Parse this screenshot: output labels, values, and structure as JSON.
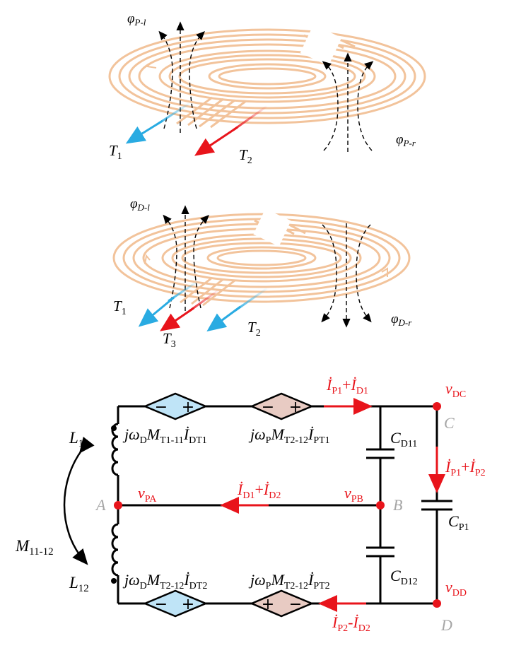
{
  "colors": {
    "coil": "#f2c39b",
    "wire": "#000000",
    "red": "#e8141b",
    "blue": "#29abe2",
    "node_gray": "#a6a6a6",
    "src_blue_fill": "#bfe4f7",
    "src_pink_fill": "#e8cbc3"
  },
  "panel_top": {
    "flux_left": {
      "sym": "φ",
      "sub": "P-l"
    },
    "flux_right": {
      "sym": "φ",
      "sub": "P-r"
    },
    "terminals": [
      {
        "name": "T",
        "sub": "1",
        "arrow": "blue"
      },
      {
        "name": "T",
        "sub": "2",
        "arrow": "red"
      }
    ]
  },
  "panel_mid": {
    "flux_left": {
      "sym": "φ",
      "sub": "D-l"
    },
    "flux_right": {
      "sym": "φ",
      "sub": "D-r"
    },
    "terminals": [
      {
        "name": "T",
        "sub": "1",
        "arrow": "blue"
      },
      {
        "name": "T",
        "sub": "3",
        "arrow": "red"
      },
      {
        "name": "T",
        "sub": "2",
        "arrow": "blue"
      }
    ]
  },
  "circuit": {
    "inductor_top": {
      "name": "L",
      "sub": "11"
    },
    "inductor_bottom": {
      "name": "L",
      "sub": "12"
    },
    "mutual": {
      "name": "M",
      "sub": "11-12"
    },
    "src_top_left": {
      "pre": "jω",
      "w": "D",
      "m": "M",
      "msub": "T1-11",
      "i": "İ",
      "isub": "DT1",
      "pol_left": "−",
      "pol_right": "+"
    },
    "src_top_right": {
      "pre": "jω",
      "w": "P",
      "m": "M",
      "msub": "T2-12",
      "i": "İ",
      "isub": "PT1",
      "pol_left": "−",
      "pol_right": "+"
    },
    "src_bot_left": {
      "pre": "jω",
      "w": "D",
      "m": "M",
      "msub": "T2-12",
      "i": "İ",
      "isub": "DT2",
      "pol_left": "−",
      "pol_right": "+"
    },
    "src_bot_right": {
      "pre": "jω",
      "w": "P",
      "m": "M",
      "msub": "T2-12",
      "i": "İ",
      "isub": "PT2",
      "pol_left": "+",
      "pol_right": "−"
    },
    "cap_top": {
      "name": "C",
      "sub": "D11"
    },
    "cap_bottom": {
      "name": "C",
      "sub": "D12"
    },
    "cap_right": {
      "name": "C",
      "sub": "P1"
    },
    "node_A": "A",
    "node_B": "B",
    "node_C": "C",
    "node_D": "D",
    "v_PA": {
      "v": "v",
      "sub": "PA"
    },
    "v_PB": {
      "v": "v",
      "sub": "PB"
    },
    "v_DC": {
      "v": "v",
      "sub": "DC"
    },
    "v_DD": {
      "v": "v",
      "sub": "DD"
    },
    "i_top": {
      "a": "İ",
      "asub": "P1",
      "op": "+",
      "b": "İ",
      "bsub": "D1"
    },
    "i_mid": {
      "a": "İ",
      "asub": "D1",
      "op": "+",
      "b": "İ",
      "bsub": "D2"
    },
    "i_right": {
      "a": "İ",
      "asub": "P1",
      "op": "+",
      "b": "İ",
      "bsub": "P2"
    },
    "i_bottom": {
      "a": "İ",
      "asub": "P2",
      "op": "-",
      "b": "İ",
      "bsub": "D2"
    }
  }
}
